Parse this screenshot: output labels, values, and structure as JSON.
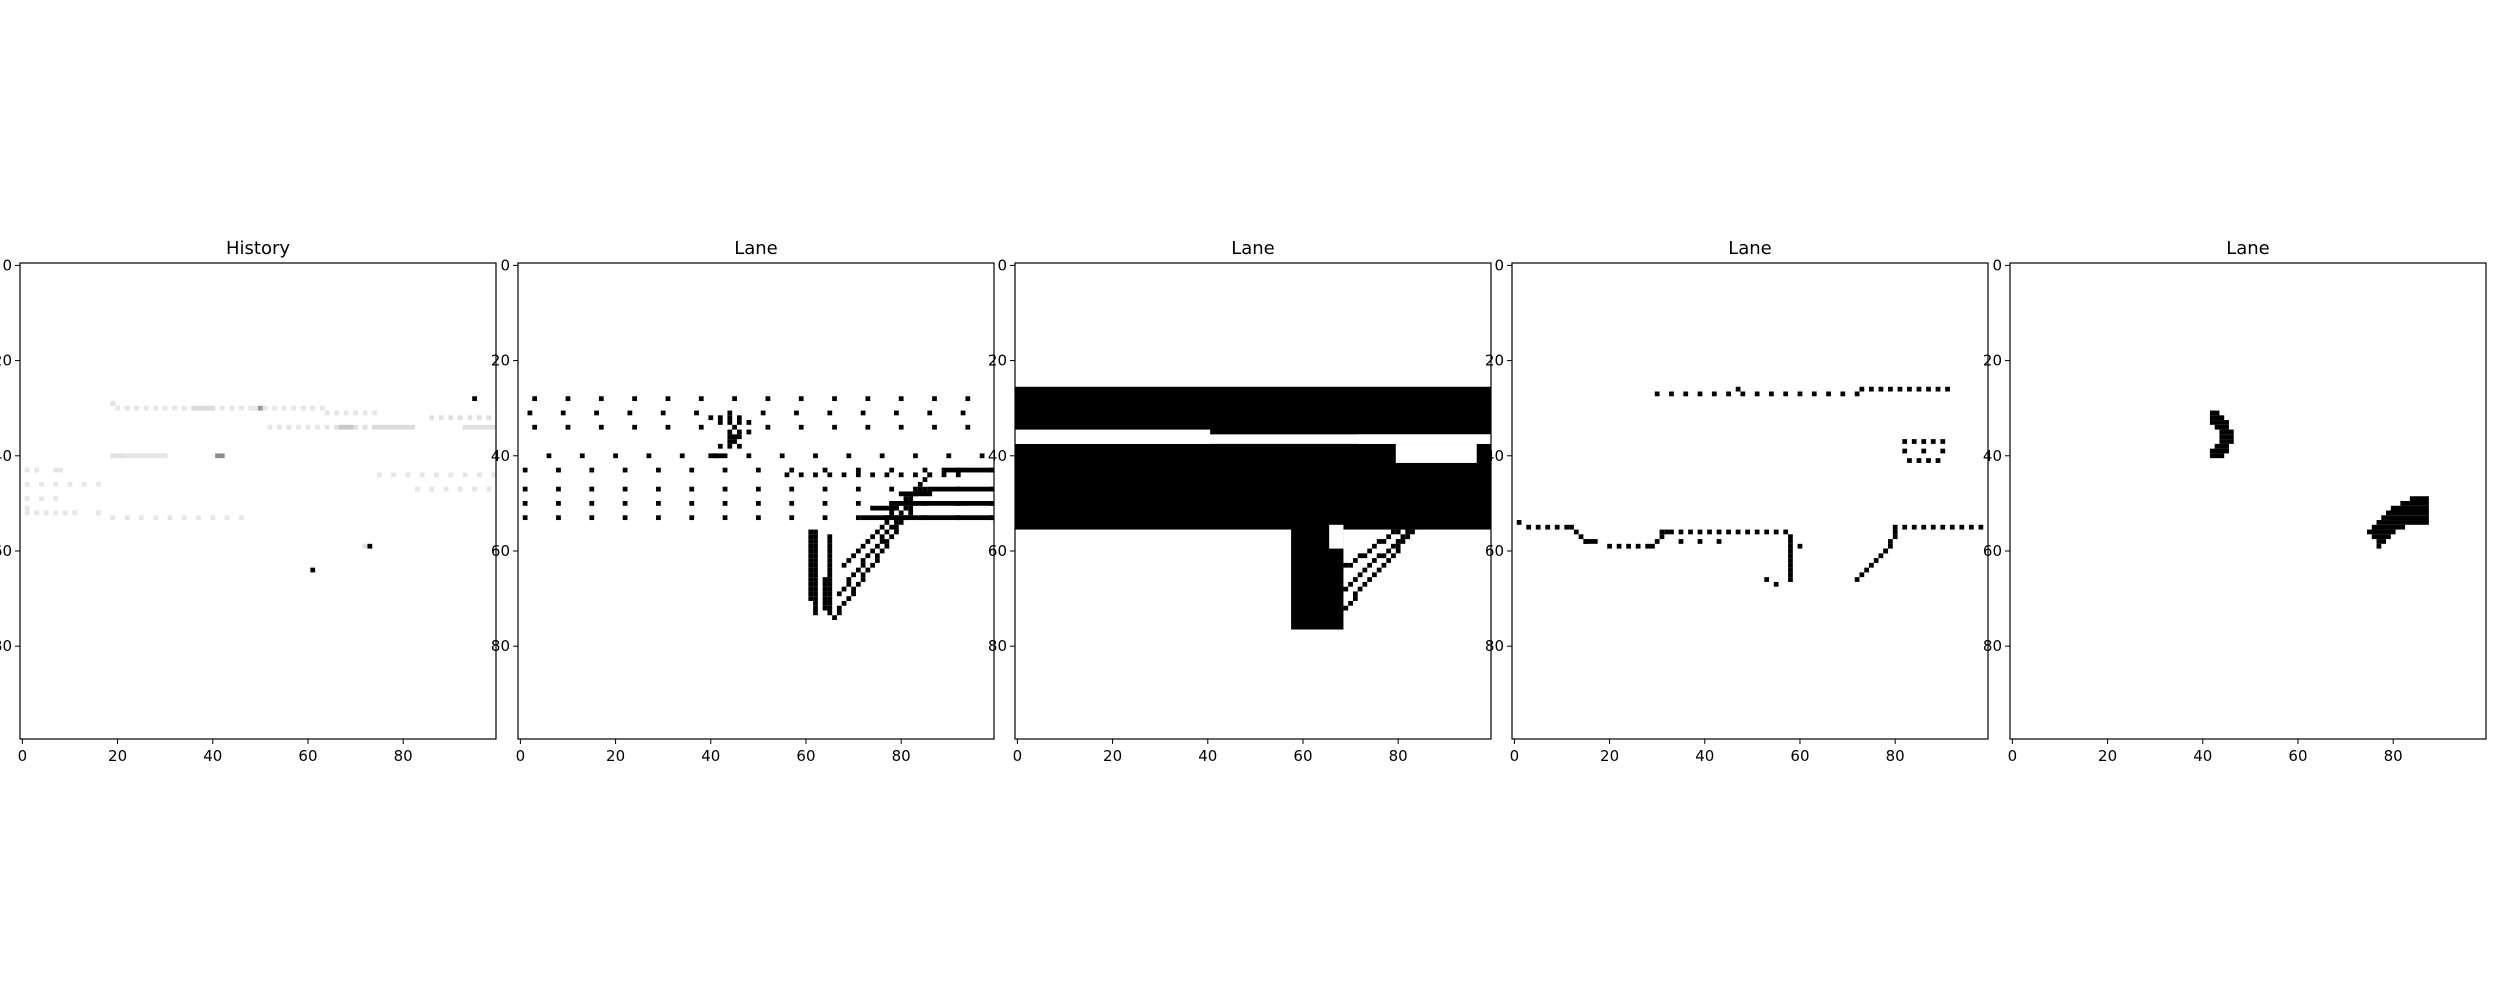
{
  "chart_data": [
    {
      "type": "heatmap",
      "title": "History",
      "xlim": [
        0,
        99
      ],
      "ylim": [
        99,
        0
      ],
      "xticks": [
        0,
        20,
        40,
        60,
        80
      ],
      "yticks": [
        0,
        20,
        40,
        60,
        80
      ],
      "cells": [
        {
          "row": 28,
          "col_start": 95,
          "col_end": 95,
          "shade": "#000000"
        },
        {
          "row": 29,
          "col_start": 19,
          "col_end": 19,
          "shade": "#e0e0e0"
        },
        {
          "row": 30,
          "col_start": 20,
          "col_end": 49,
          "shade": "#e6e6e6",
          "step": 2
        },
        {
          "row": 30,
          "col_start": 36,
          "col_end": 40,
          "shade": "#dcdcdc"
        },
        {
          "row": 30,
          "col_start": 49,
          "col_end": 63,
          "shade": "#e6e6e6",
          "step": 2
        },
        {
          "row": 30,
          "col_start": 50,
          "col_end": 50,
          "shade": "#999999"
        },
        {
          "row": 31,
          "col_start": 64,
          "col_end": 74,
          "shade": "#e6e6e6",
          "step": 2
        },
        {
          "row": 32,
          "col_start": 86,
          "col_end": 99,
          "shade": "#e0e0e0",
          "step": 2
        },
        {
          "row": 34,
          "col_start": 52,
          "col_end": 64,
          "shade": "#e6e6e6",
          "step": 2
        },
        {
          "row": 34,
          "col_start": 66,
          "col_end": 74,
          "shade": "#e0e0e0",
          "step": 2
        },
        {
          "row": 34,
          "col_start": 67,
          "col_end": 69,
          "shade": "#c8c8c8"
        },
        {
          "row": 34,
          "col_start": 74,
          "col_end": 82,
          "shade": "#dcdcdc"
        },
        {
          "row": 34,
          "col_start": 93,
          "col_end": 99,
          "shade": "#e0e0e0"
        },
        {
          "row": 40,
          "col_start": 19,
          "col_end": 21,
          "shade": "#e0e0e0"
        },
        {
          "row": 40,
          "col_start": 22,
          "col_end": 30,
          "shade": "#e6e6e6"
        },
        {
          "row": 40,
          "col_start": 41,
          "col_end": 42,
          "shade": "#8c8c8c"
        },
        {
          "row": 43,
          "col_start": 1,
          "col_end": 4,
          "shade": "#e6e6e6",
          "step": 2
        },
        {
          "row": 43,
          "col_start": 7,
          "col_end": 8,
          "shade": "#e6e6e6"
        },
        {
          "row": 44,
          "col_start": 75,
          "col_end": 99,
          "shade": "#e6e6e6",
          "step": 3
        },
        {
          "row": 46,
          "col_start": 1,
          "col_end": 16,
          "shade": "#e6e6e6",
          "step": 3
        },
        {
          "row": 47,
          "col_start": 83,
          "col_end": 98,
          "shade": "#e6e6e6",
          "step": 3
        },
        {
          "row": 49,
          "col_start": 1,
          "col_end": 7,
          "shade": "#e6e6e6",
          "step": 3
        },
        {
          "row": 51,
          "col_start": 1,
          "col_end": 1,
          "shade": "#e6e6e6"
        },
        {
          "row": 52,
          "col_start": 1,
          "col_end": 12,
          "shade": "#e6e6e6",
          "step": 2
        },
        {
          "row": 52,
          "col_start": 16,
          "col_end": 16,
          "shade": "#e6e6e6"
        },
        {
          "row": 53,
          "col_start": 19,
          "col_end": 46,
          "shade": "#e6e6e6",
          "step": 3
        },
        {
          "row": 59,
          "col_start": 72,
          "col_end": 72,
          "shade": "#e0e0e0"
        },
        {
          "row": 59,
          "col_start": 73,
          "col_end": 73,
          "shade": "#000000"
        },
        {
          "row": 64,
          "col_start": 61,
          "col_end": 61,
          "shade": "#000000"
        }
      ]
    },
    {
      "type": "heatmap",
      "title": "Lane",
      "xlim": [
        0,
        99
      ],
      "ylim": [
        99,
        0
      ],
      "xticks": [
        0,
        20,
        40,
        60,
        80
      ],
      "yticks": [
        0,
        20,
        40,
        60,
        80
      ],
      "cells": [
        {
          "row": 28,
          "col_start": 3,
          "col_end": 99,
          "shade": "#000000",
          "step": 7
        },
        {
          "row": 31,
          "col_start": 2,
          "col_end": 99,
          "shade": "#000000",
          "step": 7
        },
        {
          "row": 32,
          "col_start": 40,
          "col_end": 46,
          "shade": "#000000",
          "step": 2
        },
        {
          "row": 33,
          "col_start": 42,
          "col_end": 48,
          "shade": "#000000",
          "step": 2
        },
        {
          "row": 34,
          "col_start": 3,
          "col_end": 99,
          "shade": "#000000",
          "step": 7
        },
        {
          "row": 35,
          "col_start": 44,
          "col_end": 48,
          "shade": "#000000",
          "step": 2
        },
        {
          "row": 36,
          "col_start": 44,
          "col_end": 46,
          "shade": "#000000"
        },
        {
          "row": 37,
          "col_start": 44,
          "col_end": 45,
          "shade": "#000000"
        },
        {
          "row": 38,
          "col_start": 42,
          "col_end": 47,
          "shade": "#000000",
          "step": 2
        },
        {
          "row": 40,
          "col_start": 6,
          "col_end": 99,
          "shade": "#000000",
          "step": 7
        },
        {
          "row": 40,
          "col_start": 40,
          "col_end": 43,
          "shade": "#000000"
        },
        {
          "row": 43,
          "col_start": 1,
          "col_end": 99,
          "shade": "#000000",
          "step": 7
        },
        {
          "row": 43,
          "col_start": 89,
          "col_end": 99,
          "shade": "#000000"
        },
        {
          "row": 44,
          "col_start": 56,
          "col_end": 92,
          "shade": "#000000",
          "step": 3
        },
        {
          "row": 47,
          "col_start": 1,
          "col_end": 99,
          "shade": "#000000",
          "step": 7
        },
        {
          "row": 47,
          "col_start": 86,
          "col_end": 99,
          "shade": "#000000"
        },
        {
          "row": 48,
          "col_start": 80,
          "col_end": 86,
          "shade": "#000000"
        },
        {
          "row": 50,
          "col_start": 1,
          "col_end": 99,
          "shade": "#000000",
          "step": 7
        },
        {
          "row": 50,
          "col_start": 78,
          "col_end": 99,
          "shade": "#000000"
        },
        {
          "row": 51,
          "col_start": 74,
          "col_end": 79,
          "shade": "#000000"
        },
        {
          "row": 53,
          "col_start": 1,
          "col_end": 99,
          "shade": "#000000",
          "step": 7
        },
        {
          "row": 53,
          "col_start": 72,
          "col_end": 99,
          "shade": "#000000"
        }
      ],
      "strokes": [
        {
          "cols": [
            61,
            61
          ],
          "rows": [
            56,
            70
          ]
        },
        {
          "cols": [
            62,
            62
          ],
          "rows": [
            56,
            73
          ]
        },
        {
          "cols": [
            65,
            65
          ],
          "rows": [
            57,
            73
          ]
        },
        {
          "cols": [
            64,
            64
          ],
          "rows": [
            66,
            72
          ]
        },
        {
          "cols": [
            66,
            83
          ],
          "rows": [
            74,
            50
          ]
        },
        {
          "cols": [
            67,
            84
          ],
          "rows": [
            69,
            47
          ]
        },
        {
          "cols": [
            68,
            86
          ],
          "rows": [
            63,
            44
          ]
        }
      ]
    },
    {
      "type": "heatmap",
      "title": "Lane",
      "xlim": [
        0,
        99
      ],
      "ylim": [
        99,
        0
      ],
      "xticks": [
        0,
        20,
        40,
        60,
        80
      ],
      "yticks": [
        0,
        20,
        40,
        60,
        80
      ],
      "regions": [
        {
          "row_start": 26,
          "row_end": 35,
          "col_start": 0,
          "col_end": 99,
          "shade": "#000000"
        },
        {
          "row_start": 38,
          "row_end": 55,
          "col_start": 0,
          "col_end": 99,
          "shade": "#000000"
        },
        {
          "row_start": 55,
          "row_end": 76,
          "col_start": 58,
          "col_end": 68,
          "shade": "#000000"
        }
      ],
      "gaps": [
        {
          "row_start": 35,
          "row_end": 38,
          "col_start": 0,
          "col_end": 40
        },
        {
          "row_start": 36,
          "row_end": 38,
          "col_start": 72,
          "col_end": 99
        },
        {
          "row_start": 38,
          "row_end": 42,
          "col_start": 80,
          "col_end": 96
        },
        {
          "row_start": 55,
          "row_end": 60,
          "col_start": 66,
          "col_end": 68
        }
      ],
      "strokes": [
        {
          "cols": [
            66,
            84
          ],
          "rows": [
            75,
            55
          ]
        },
        {
          "cols": [
            67,
            86
          ],
          "rows": [
            70,
            52
          ]
        },
        {
          "cols": [
            68,
            88
          ],
          "rows": [
            64,
            50
          ]
        }
      ]
    },
    {
      "type": "heatmap",
      "title": "Lane",
      "xlim": [
        0,
        99
      ],
      "ylim": [
        99,
        0
      ],
      "xticks": [
        0,
        20,
        40,
        60,
        80
      ],
      "yticks": [
        0,
        20,
        40,
        60,
        80
      ],
      "cells": [
        {
          "row": 26,
          "col_start": 73,
          "col_end": 92,
          "shade": "#000000",
          "step": 2
        },
        {
          "row": 26,
          "col_start": 47,
          "col_end": 47,
          "shade": "#000000"
        },
        {
          "row": 27,
          "col_start": 30,
          "col_end": 72,
          "shade": "#000000",
          "step": 3
        },
        {
          "row": 37,
          "col_start": 82,
          "col_end": 90,
          "shade": "#000000",
          "step": 2
        },
        {
          "row": 39,
          "col_start": 82,
          "col_end": 90,
          "shade": "#000000",
          "step": 4
        },
        {
          "row": 41,
          "col_start": 83,
          "col_end": 90,
          "shade": "#000000",
          "step": 2
        },
        {
          "row": 54,
          "col_start": 1,
          "col_end": 1,
          "shade": "#000000"
        },
        {
          "row": 55,
          "col_start": 3,
          "col_end": 12,
          "shade": "#000000",
          "step": 2
        },
        {
          "row": 55,
          "col_start": 80,
          "col_end": 99,
          "shade": "#000000",
          "step": 2
        },
        {
          "row": 56,
          "col_start": 31,
          "col_end": 58,
          "shade": "#000000",
          "step": 2
        },
        {
          "row": 58,
          "col_start": 15,
          "col_end": 17,
          "shade": "#000000"
        },
        {
          "row": 58,
          "col_start": 35,
          "col_end": 45,
          "shade": "#000000",
          "step": 4
        },
        {
          "row": 59,
          "col_start": 20,
          "col_end": 29,
          "shade": "#000000",
          "step": 2
        },
        {
          "row": 59,
          "col_start": 60,
          "col_end": 60,
          "shade": "#000000"
        },
        {
          "row": 66,
          "col_start": 53,
          "col_end": 53,
          "shade": "#000000"
        },
        {
          "row": 67,
          "col_start": 55,
          "col_end": 55,
          "shade": "#000000"
        }
      ],
      "strokes": [
        {
          "cols": [
            12,
            15
          ],
          "rows": [
            55,
            58
          ]
        },
        {
          "cols": [
            29,
            32
          ],
          "rows": [
            59,
            56
          ]
        },
        {
          "cols": [
            58,
            58
          ],
          "rows": [
            57,
            66
          ]
        },
        {
          "cols": [
            72,
            78
          ],
          "rows": [
            66,
            60
          ]
        },
        {
          "cols": [
            78,
            80
          ],
          "rows": [
            60,
            56
          ]
        }
      ]
    },
    {
      "type": "heatmap",
      "title": "Lane",
      "xlim": [
        0,
        99
      ],
      "ylim": [
        99,
        0
      ],
      "xticks": [
        0,
        20,
        40,
        60,
        80
      ],
      "yticks": [
        0,
        20,
        40,
        60,
        80
      ],
      "cells": [
        {
          "row": 31,
          "col_start": 42,
          "col_end": 43,
          "shade": "#000000"
        },
        {
          "row": 32,
          "col_start": 42,
          "col_end": 44,
          "shade": "#000000"
        },
        {
          "row": 33,
          "col_start": 42,
          "col_end": 45,
          "shade": "#000000"
        },
        {
          "row": 34,
          "col_start": 43,
          "col_end": 45,
          "shade": "#000000"
        },
        {
          "row": 35,
          "col_start": 44,
          "col_end": 46,
          "shade": "#000000"
        },
        {
          "row": 36,
          "col_start": 44,
          "col_end": 46,
          "shade": "#000000"
        },
        {
          "row": 37,
          "col_start": 44,
          "col_end": 46,
          "shade": "#000000"
        },
        {
          "row": 38,
          "col_start": 43,
          "col_end": 45,
          "shade": "#000000"
        },
        {
          "row": 39,
          "col_start": 42,
          "col_end": 45,
          "shade": "#000000"
        },
        {
          "row": 40,
          "col_start": 42,
          "col_end": 44,
          "shade": "#000000"
        },
        {
          "row": 49,
          "col_start": 84,
          "col_end": 87,
          "shade": "#000000"
        },
        {
          "row": 50,
          "col_start": 82,
          "col_end": 87,
          "shade": "#000000"
        },
        {
          "row": 51,
          "col_start": 80,
          "col_end": 87,
          "shade": "#000000"
        },
        {
          "row": 52,
          "col_start": 79,
          "col_end": 87,
          "shade": "#000000"
        },
        {
          "row": 53,
          "col_start": 78,
          "col_end": 87,
          "shade": "#000000"
        },
        {
          "row": 54,
          "col_start": 77,
          "col_end": 87,
          "shade": "#000000"
        },
        {
          "row": 55,
          "col_start": 76,
          "col_end": 82,
          "shade": "#000000"
        },
        {
          "row": 56,
          "col_start": 75,
          "col_end": 80,
          "shade": "#000000"
        },
        {
          "row": 57,
          "col_start": 76,
          "col_end": 79,
          "shade": "#000000"
        },
        {
          "row": 58,
          "col_start": 77,
          "col_end": 78,
          "shade": "#000000"
        },
        {
          "row": 59,
          "col_start": 77,
          "col_end": 77,
          "shade": "#000000"
        }
      ]
    }
  ]
}
